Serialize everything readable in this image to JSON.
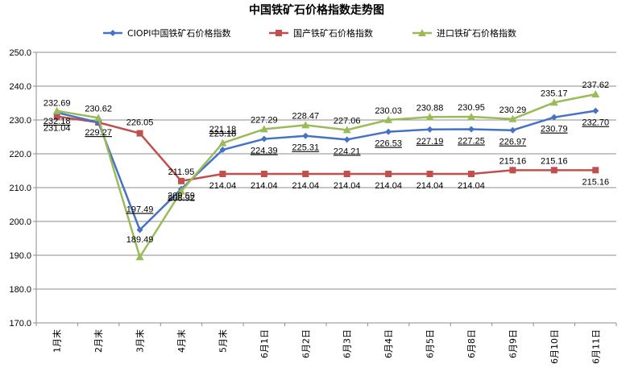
{
  "chart_data": {
    "type": "line",
    "title": "中国铁矿石价格指数走势图",
    "xlabel": "",
    "ylabel": "",
    "ylim": [
      170,
      250
    ],
    "yticks": [
      "170.0",
      "180.0",
      "190.0",
      "200.0",
      "210.0",
      "220.0",
      "230.0",
      "240.0",
      "250.0"
    ],
    "ytick_values": [
      170,
      180,
      190,
      200,
      210,
      220,
      230,
      240,
      250
    ],
    "categories": [
      "1月末",
      "2月末",
      "3月末",
      "4月末",
      "5月末",
      "6月1日",
      "6月2日",
      "6月3日",
      "6月4日",
      "6月5日",
      "6月8日",
      "6月9日",
      "6月10日",
      "6月11日"
    ],
    "grid": "horizontal",
    "legend_position": "top",
    "series": [
      {
        "name": "CIOPI中国铁矿石价格指数",
        "color": "#4472C4",
        "marker": "diamond",
        "values": [
          232.18,
          229.27,
          197.49,
          209.59,
          221.18,
          224.39,
          225.31,
          224.21,
          226.53,
          227.19,
          227.25,
          226.97,
          230.79,
          232.7
        ],
        "labels": [
          "232.18",
          "229.27",
          "197.49",
          "209.59",
          "221.18",
          "224.39",
          "225.31",
          "224.21",
          "226.53",
          "227.19",
          "227.25",
          "226.97",
          "230.79",
          "232.70"
        ]
      },
      {
        "name": "国产铁矿石价格指数",
        "color": "#C0504D",
        "marker": "square",
        "values": [
          231.04,
          229.27,
          226.05,
          211.95,
          214.04,
          214.04,
          214.04,
          214.04,
          214.04,
          214.04,
          214.04,
          215.16,
          215.16,
          215.16
        ],
        "labels": [
          "231.04",
          "",
          "226.05",
          "211.95",
          "214.04",
          "214.04",
          "214.04",
          "214.04",
          "214.04",
          "214.04",
          "214.04",
          "215.16",
          "215.16",
          "215.16"
        ]
      },
      {
        "name": "进口铁矿石价格指数",
        "color": "#9BBB59",
        "marker": "triangle",
        "values": [
          232.69,
          230.62,
          189.49,
          208.92,
          223.18,
          227.29,
          228.47,
          227.06,
          230.03,
          230.88,
          230.95,
          230.29,
          235.17,
          237.62
        ],
        "labels": [
          "232.69",
          "230.62",
          "189.49",
          "208.92",
          "223.18",
          "227.29",
          "228.47",
          "227.06",
          "230.03",
          "230.88",
          "230.95",
          "230.29",
          "235.17",
          "237.62"
        ]
      }
    ]
  }
}
